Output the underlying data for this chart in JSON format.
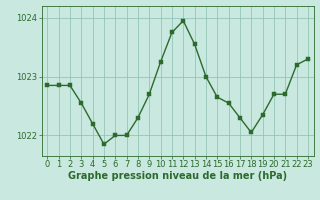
{
  "x": [
    0,
    1,
    2,
    3,
    4,
    5,
    6,
    7,
    8,
    9,
    10,
    11,
    12,
    13,
    14,
    15,
    16,
    17,
    18,
    19,
    20,
    21,
    22,
    23
  ],
  "y": [
    1022.85,
    1022.85,
    1022.85,
    1022.55,
    1022.2,
    1021.85,
    1022.0,
    1022.0,
    1022.3,
    1022.7,
    1023.25,
    1023.75,
    1023.95,
    1023.55,
    1023.0,
    1022.65,
    1022.55,
    1022.3,
    1022.05,
    1022.35,
    1022.7,
    1022.7,
    1023.2,
    1023.3
  ],
  "line_color": "#2d6a2d",
  "marker_color": "#2d6a2d",
  "bg_color": "#c8e8e0",
  "grid_color": "#8abfb0",
  "axis_color": "#2d6a2d",
  "tick_label_color": "#2d6a2d",
  "xlabel": "Graphe pression niveau de la mer (hPa)",
  "xlabel_color": "#2d6a2d",
  "ylim": [
    1021.65,
    1024.2
  ],
  "yticks": [
    1022,
    1023,
    1024
  ],
  "xticks": [
    0,
    1,
    2,
    3,
    4,
    5,
    6,
    7,
    8,
    9,
    10,
    11,
    12,
    13,
    14,
    15,
    16,
    17,
    18,
    19,
    20,
    21,
    22,
    23
  ],
  "xlabel_fontsize": 7.0,
  "tick_fontsize": 6.0,
  "marker_size": 2.5,
  "line_width": 1.0
}
